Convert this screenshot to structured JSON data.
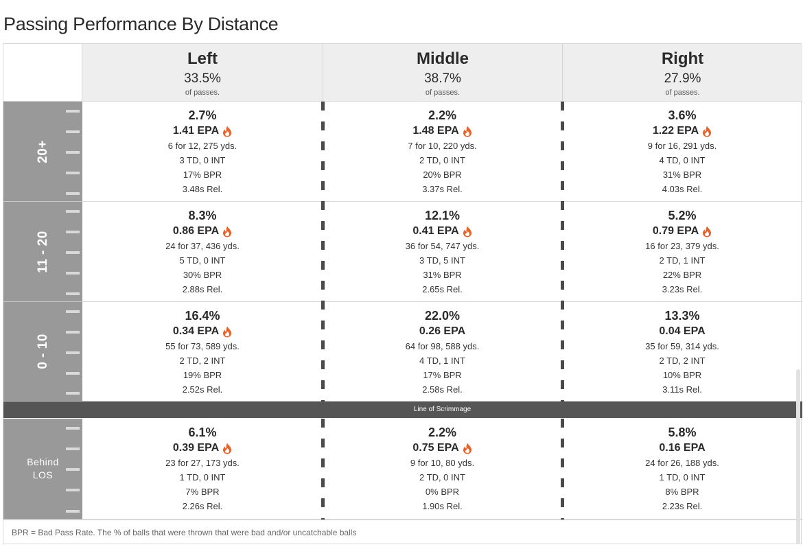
{
  "title": "Passing Performance By Distance",
  "columns": [
    {
      "label": "Left",
      "pct": "33.5%",
      "sub": "of passes."
    },
    {
      "label": "Middle",
      "pct": "38.7%",
      "sub": "of passes."
    },
    {
      "label": "Right",
      "pct": "27.9%",
      "sub": "of passes."
    }
  ],
  "rows": [
    {
      "label": "20+",
      "cells": [
        {
          "share": "2.7%",
          "epa": "1.41 EPA",
          "hot": true,
          "comp": "6 for 12, 275 yds.",
          "td": "3 TD, 0 INT",
          "bpr": "17% BPR",
          "rel": "3.48s Rel."
        },
        {
          "share": "2.2%",
          "epa": "1.48 EPA",
          "hot": true,
          "comp": "7 for 10, 220 yds.",
          "td": "2 TD, 0 INT",
          "bpr": "20% BPR",
          "rel": "3.37s Rel."
        },
        {
          "share": "3.6%",
          "epa": "1.22 EPA",
          "hot": true,
          "comp": "9 for 16, 291 yds.",
          "td": "4 TD, 0 INT",
          "bpr": "31% BPR",
          "rel": "4.03s Rel."
        }
      ]
    },
    {
      "label": "11 - 20",
      "cells": [
        {
          "share": "8.3%",
          "epa": "0.86 EPA",
          "hot": true,
          "comp": "24 for 37, 436 yds.",
          "td": "5 TD, 0 INT",
          "bpr": "30% BPR",
          "rel": "2.88s Rel."
        },
        {
          "share": "12.1%",
          "epa": "0.41 EPA",
          "hot": true,
          "comp": "36 for 54, 747 yds.",
          "td": "3 TD, 5 INT",
          "bpr": "31% BPR",
          "rel": "2.65s Rel."
        },
        {
          "share": "5.2%",
          "epa": "0.79 EPA",
          "hot": true,
          "comp": "16 for 23, 379 yds.",
          "td": "2 TD, 1 INT",
          "bpr": "22% BPR",
          "rel": "3.23s Rel."
        }
      ]
    },
    {
      "label": "0 - 10",
      "cells": [
        {
          "share": "16.4%",
          "epa": "0.34 EPA",
          "hot": true,
          "comp": "55 for 73, 589 yds.",
          "td": "2 TD, 2 INT",
          "bpr": "19% BPR",
          "rel": "2.52s Rel."
        },
        {
          "share": "22.0%",
          "epa": "0.26 EPA",
          "hot": false,
          "comp": "64 for 98, 588 yds.",
          "td": "4 TD, 1 INT",
          "bpr": "17% BPR",
          "rel": "2.58s Rel."
        },
        {
          "share": "13.3%",
          "epa": "0.04 EPA",
          "hot": false,
          "comp": "35 for 59, 314 yds.",
          "td": "2 TD, 2 INT",
          "bpr": "10% BPR",
          "rel": "3.11s Rel."
        }
      ]
    },
    {
      "label": "Behind LOS",
      "cells": [
        {
          "share": "6.1%",
          "epa": "0.39 EPA",
          "hot": true,
          "comp": "23 for 27, 173 yds.",
          "td": "1 TD, 0 INT",
          "bpr": "7% BPR",
          "rel": "2.26s Rel."
        },
        {
          "share": "2.2%",
          "epa": "0.75 EPA",
          "hot": true,
          "comp": "9 for 10, 80 yds.",
          "td": "2 TD, 0 INT",
          "bpr": "0% BPR",
          "rel": "1.90s Rel."
        },
        {
          "share": "5.8%",
          "epa": "0.16 EPA",
          "hot": false,
          "comp": "24 for 26, 188 yds.",
          "td": "1 TD, 0 INT",
          "bpr": "8% BPR",
          "rel": "2.23s Rel."
        }
      ]
    }
  ],
  "los_label": "Line of Scrimmage",
  "footnote": "BPR = Bad Pass Rate. The % of balls that were thrown that were bad and/or uncatchable balls",
  "colors": {
    "flame": "#e8622a",
    "band": "#999999",
    "los": "#555555",
    "header": "#eeeeee"
  }
}
